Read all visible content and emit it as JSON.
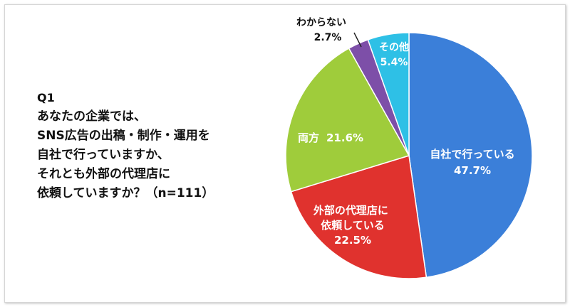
{
  "question": {
    "number": "Q1",
    "lines": [
      "あなたの企業では、",
      "SNS広告の出稿・制作・運用を",
      "自社で行っていますか、",
      "それとも外部の代理店に",
      "依頼していますか？（n=111）"
    ]
  },
  "chart_data": {
    "type": "pie",
    "title": "",
    "slices": [
      {
        "label": "自社で行っている",
        "value": 47.7,
        "display": "47.7%",
        "color": "#3b7fd9"
      },
      {
        "label": "外部の代理店に依頼している",
        "value": 22.5,
        "display": "22.5%",
        "color": "#e0322e"
      },
      {
        "label": "両方",
        "value": 21.6,
        "display": "21.6%",
        "color": "#9fcc3b"
      },
      {
        "label": "わからない",
        "value": 2.7,
        "display": "2.7%",
        "color": "#7d4fa8"
      },
      {
        "label": "その他",
        "value": 5.4,
        "display": "5.4%",
        "color": "#2ec0e6"
      }
    ],
    "start_angle": "12 o'clock",
    "direction": "clockwise"
  }
}
